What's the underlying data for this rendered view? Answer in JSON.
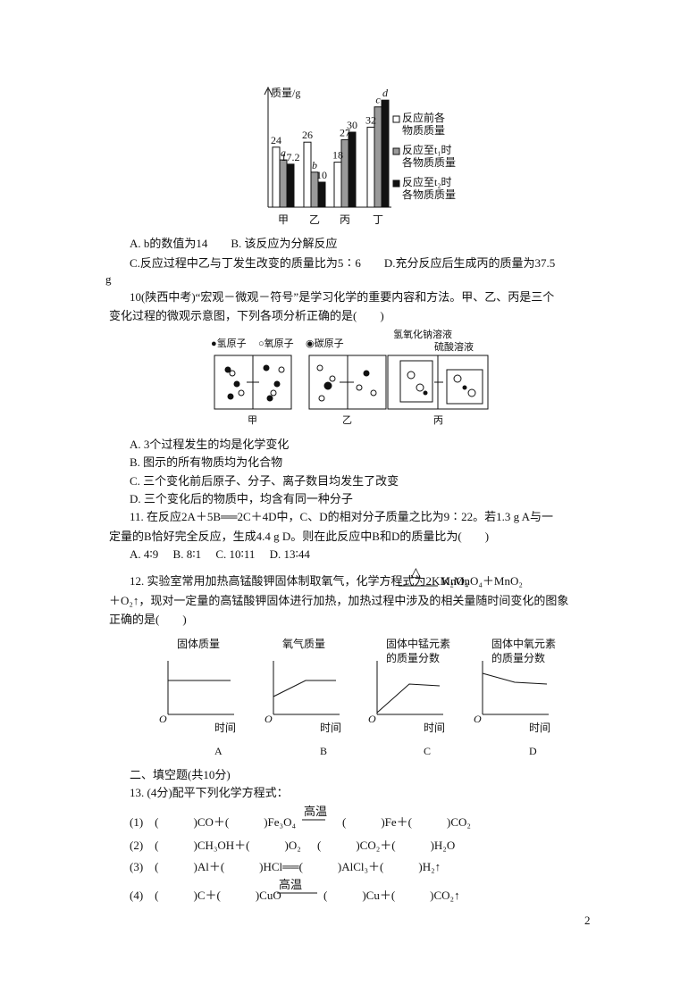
{
  "bar_figure": {
    "y_label": "质量/g",
    "categories": [
      "甲",
      "乙",
      "丙",
      "丁"
    ],
    "series": [
      {
        "name": [
          "反应前各",
          "物质质量"
        ],
        "color": "#ffffff",
        "values": [
          24,
          26,
          18,
          32
        ]
      },
      {
        "name": [
          "反应至t₁时",
          "各物质质量"
        ],
        "color": "#9a9a9a",
        "values": [
          18.9,
          14,
          27,
          40.1
        ],
        "value_labels": [
          "a",
          "b",
          "27",
          "c"
        ]
      },
      {
        "name": [
          "反应至t₂时",
          "各物质质量"
        ],
        "color": "#111111",
        "values": [
          17.2,
          10,
          30,
          42.8
        ],
        "value_labels": [
          "17.2",
          "10",
          "30",
          "d"
        ]
      }
    ]
  },
  "q9": {
    "options": [
      "A. b的数值为14　　B. 该反应为分解反应",
      "C.反应过程中乙与丁发生改变的质量比为5∶6　　D.充分反应后生成丙的质量为37.5",
      "g"
    ]
  },
  "q10": {
    "stem": [
      "10(陕西中考)“宏观－微观－符号”是学习化学的重要内容和方法。甲、乙、丙是三个",
      "变化过程的微观示意图，下列各项分析正确的是(　　)"
    ],
    "legend": [
      "●氢原子",
      "○氧原子",
      "◉碳原子"
    ],
    "solutions": [
      "氢氧化钠溶液",
      "硫酸溶液"
    ],
    "labels": [
      "甲",
      "乙",
      "丙"
    ],
    "options": [
      "A. 3个过程发生的均是化学变化",
      "B. 图示的所有物质均为化合物",
      "C. 三个变化前后原子、分子、离子数目均发生了改变",
      "D. 三个变化后的物质中，均含有同一种分子"
    ]
  },
  "q11": {
    "stem": [
      "11. 在反应2A＋5B══2C＋4D中，C、D的相对分子质量之比为9∶22。若1.3 g A与一",
      "定量的B恰好完全反应，生成4.4 g D。则在此反应中B和D的质量比为(　　)"
    ],
    "options": "A. 4∶9　 B. 8∶1　 C. 10∶11　 D. 13∶44"
  },
  "q12": {
    "stem_1": "12. 实验室常用加热高锰酸钾固体制取氧气，化学方程式为2KMnO₄",
    "condition": "△",
    "stem_1b": "K₂MnO₄＋MnO₂",
    "stem": [
      "＋O₂↑，现对一定量的高锰酸钾固体进行加热，加热过程中涉及的相关量随时间变化的图象",
      "正确的是(　　)"
    ],
    "graphs": [
      {
        "y": [
          "固体质量"
        ],
        "label": "A"
      },
      {
        "y": [
          "氧气质量"
        ],
        "label": "B"
      },
      {
        "y": [
          "固体中锰元素",
          "的质量分数"
        ],
        "label": "C"
      },
      {
        "y": [
          "固体中氧元素",
          "的质量分数"
        ],
        "label": "D"
      }
    ],
    "origin": "O",
    "x_label": "时间"
  },
  "section2": "二、填空题(共10分)",
  "q13": {
    "stem": "13. (4分)配平下列化学方程式：",
    "eqs": [
      {
        "left": "(1)　(　　　)CO＋(　　　)Fe₃O₄",
        "cond": "高温",
        "right": "(　　　)Fe＋(　　　)CO₂"
      },
      {
        "left": "(2)　(　　　)CH₃OH＋(　　　)O₂",
        "cond": "",
        "right": "(　　　)CO₂＋(　　　)H₂O"
      },
      {
        "left": "(3)　(　　　)Al＋(　　　)HCl══(　　　)AlCl₃＋(　　　)H₂↑",
        "cond": "",
        "right": ""
      },
      {
        "left": "(4)　(　　　)C＋(　　　)CuO",
        "cond": "高温",
        "right": "(　　　)Cu＋(　　　)CO₂↑"
      }
    ]
  },
  "page_number": "2"
}
